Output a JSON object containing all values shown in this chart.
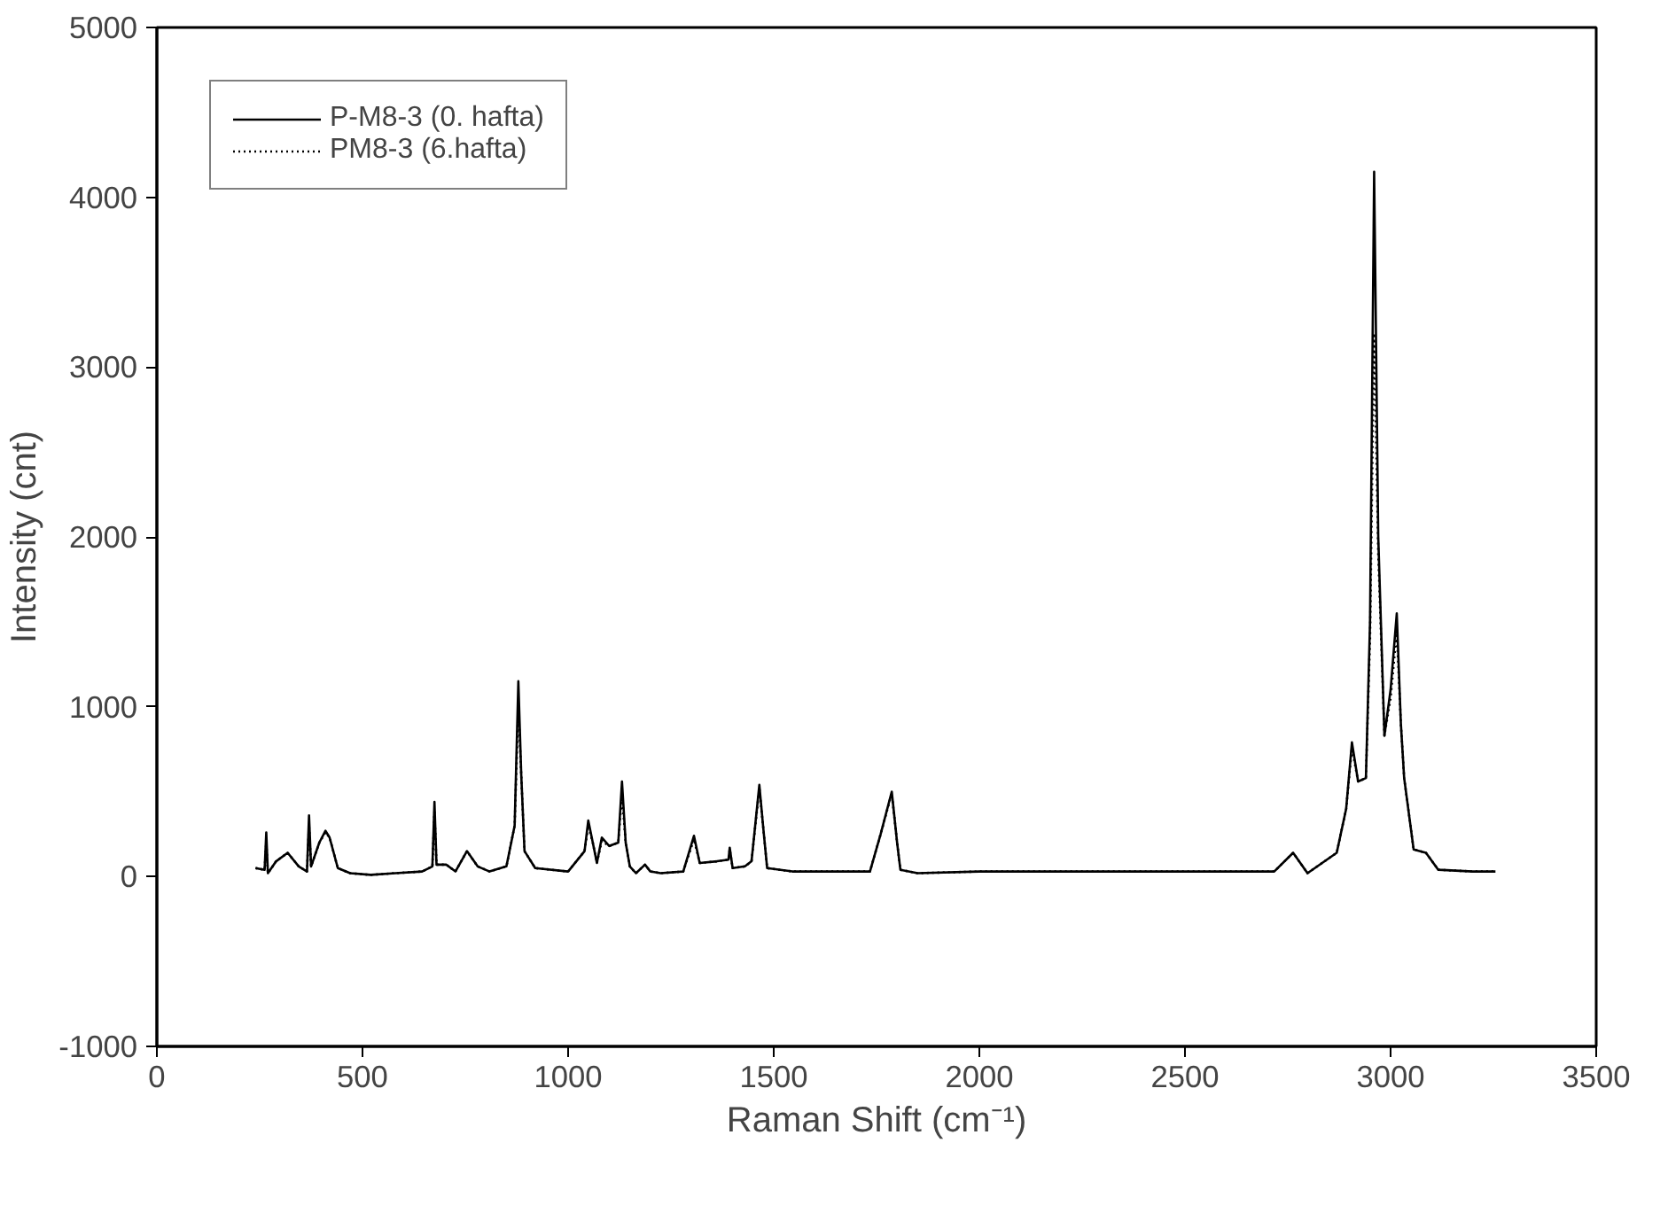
{
  "chart_data": {
    "type": "line",
    "xlabel": "Raman Shift (cm⁻¹)",
    "ylabel": "Intensity (cnt)",
    "xlim": [
      0,
      3500
    ],
    "ylim": [
      -1000,
      5000
    ],
    "xticks": [
      0,
      500,
      1000,
      1500,
      2000,
      2500,
      3000,
      3500
    ],
    "yticks": [
      -1000,
      0,
      1000,
      2000,
      3000,
      4000,
      5000
    ],
    "grid": false,
    "legend": "top left",
    "series": [
      {
        "name": "P-M8-3 (0. hafta)",
        "color": "#000000",
        "line_style": "solid",
        "x": [
          240,
          262,
          266,
          270,
          290,
          318,
          345,
          365,
          370,
          375,
          395,
          410,
          420,
          440,
          470,
          520,
          580,
          645,
          670,
          675,
          680,
          704,
          726,
          754,
          780,
          809,
          850,
          870,
          879,
          886,
          894,
          920,
          1000,
          1040,
          1049,
          1060,
          1070,
          1082,
          1100,
          1122,
          1131,
          1140,
          1150,
          1165,
          1187,
          1200,
          1225,
          1280,
          1306,
          1320,
          1362,
          1390,
          1393,
          1400,
          1430,
          1446,
          1465,
          1474,
          1484,
          1545,
          1734,
          1760,
          1787,
          1800,
          1808,
          1850,
          2000,
          2400,
          2717,
          2763,
          2798,
          2869,
          2892,
          2906,
          2921,
          2940,
          2950,
          2960,
          2970,
          2985,
          3000,
          3015,
          3025,
          3033,
          3056,
          3086,
          3116,
          3200,
          3255
        ],
        "values": [
          50,
          40,
          260,
          20,
          90,
          140,
          60,
          30,
          360,
          60,
          200,
          270,
          230,
          50,
          20,
          10,
          20,
          30,
          60,
          440,
          70,
          70,
          30,
          150,
          60,
          30,
          60,
          300,
          1150,
          600,
          150,
          50,
          30,
          150,
          330,
          200,
          80,
          230,
          180,
          200,
          560,
          200,
          60,
          20,
          70,
          30,
          20,
          30,
          240,
          80,
          90,
          100,
          170,
          50,
          60,
          90,
          540,
          300,
          50,
          30,
          30,
          250,
          500,
          200,
          40,
          20,
          30,
          30,
          30,
          140,
          20,
          140,
          400,
          790,
          560,
          580,
          1500,
          4150,
          2000,
          830,
          1100,
          1550,
          900,
          580,
          160,
          140,
          40,
          30,
          30
        ]
      },
      {
        "name": "PM8-3 (6.hafta)",
        "color": "#000000",
        "line_style": "dotted",
        "x": [
          240,
          262,
          266,
          270,
          290,
          318,
          345,
          365,
          370,
          375,
          395,
          410,
          420,
          440,
          470,
          520,
          580,
          645,
          670,
          675,
          680,
          704,
          726,
          754,
          780,
          809,
          850,
          870,
          879,
          886,
          894,
          920,
          1000,
          1040,
          1049,
          1060,
          1070,
          1082,
          1100,
          1122,
          1131,
          1140,
          1150,
          1165,
          1187,
          1200,
          1225,
          1280,
          1306,
          1320,
          1362,
          1390,
          1393,
          1400,
          1430,
          1446,
          1465,
          1474,
          1484,
          1545,
          1734,
          1760,
          1787,
          1800,
          1808,
          1850,
          2000,
          2400,
          2717,
          2763,
          2798,
          2869,
          2892,
          2906,
          2921,
          2940,
          2950,
          2960,
          2970,
          2985,
          3000,
          3015,
          3025,
          3033,
          3056,
          3086,
          3116,
          3200,
          3255
        ],
        "values": [
          50,
          40,
          200,
          20,
          90,
          140,
          60,
          30,
          300,
          60,
          200,
          260,
          230,
          50,
          20,
          10,
          20,
          30,
          60,
          380,
          70,
          70,
          30,
          150,
          60,
          30,
          60,
          300,
          1000,
          600,
          150,
          50,
          30,
          150,
          300,
          200,
          80,
          210,
          180,
          200,
          480,
          200,
          60,
          20,
          70,
          30,
          20,
          30,
          220,
          80,
          90,
          100,
          160,
          50,
          60,
          90,
          520,
          300,
          50,
          30,
          30,
          250,
          490,
          200,
          40,
          20,
          30,
          30,
          30,
          140,
          20,
          140,
          400,
          760,
          560,
          580,
          1400,
          3200,
          1900,
          830,
          1050,
          1450,
          900,
          580,
          160,
          140,
          40,
          30,
          30
        ]
      }
    ]
  }
}
